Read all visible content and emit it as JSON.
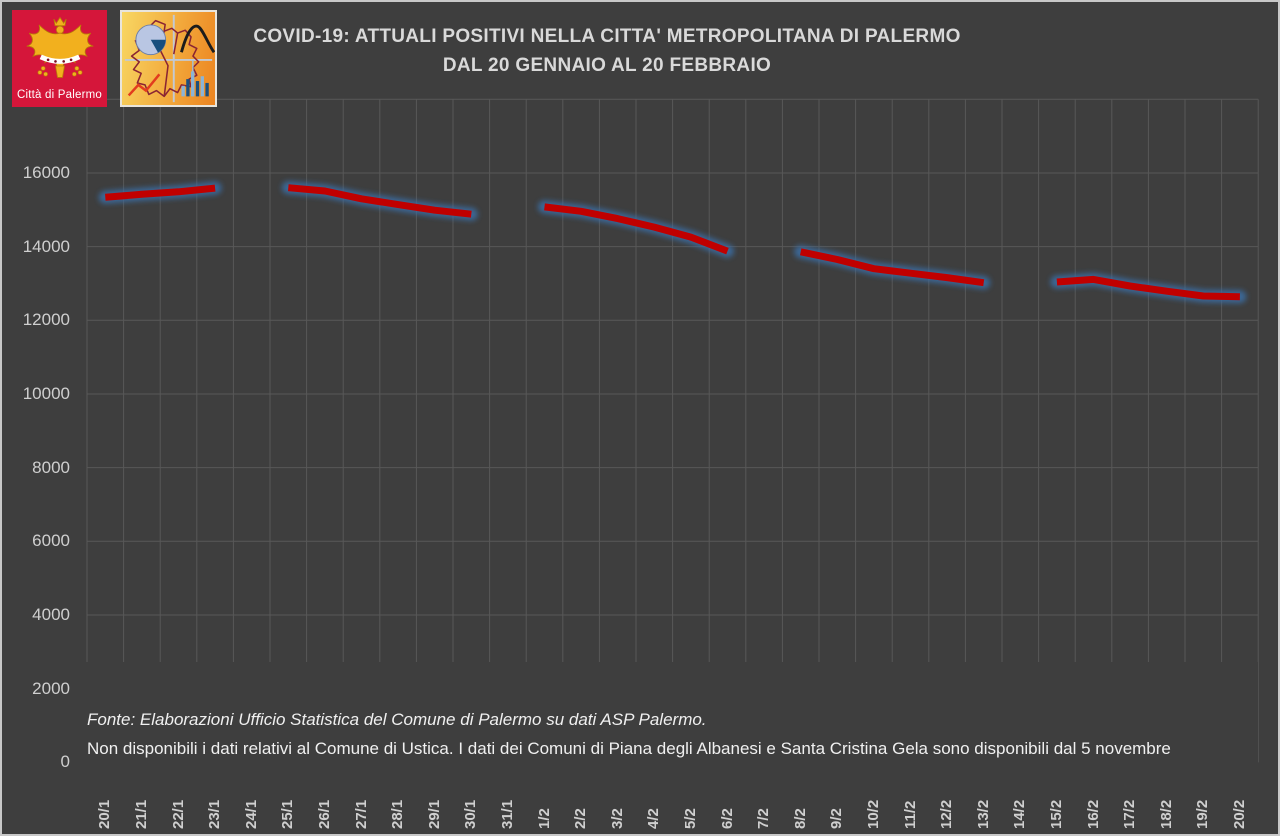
{
  "window": {
    "background": "#3e3e3e",
    "frame_border_color": "#c8c8c8"
  },
  "header": {
    "title_line1": "COVID-19: ATTUALI POSITIVI NELLA CITTA' METROPOLITANA DI PALERMO",
    "title_line2": "DAL 20 GENNAIO AL 20 FEBBRAIO",
    "logo_palermo": {
      "label": "Città di Palermo",
      "bg_color": "#d5163a",
      "emblem": "golden-eagle-crest"
    },
    "logo_statistics": {
      "description": "ufficio-statistica-map-logo",
      "bg_colors": [
        "#f8d763",
        "#ec8420"
      ]
    }
  },
  "footer": {
    "line1": "Fonte: Elaborazioni Ufficio Statistica del Comune di Palermo su dati ASP Palermo.",
    "line2": "Non disponibili i dati relativi al Comune di Ustica. I dati dei Comuni di Piana degli Albanesi e Santa Cristina Gela sono disponibili dal 5 novembre"
  },
  "chart_data": {
    "type": "line",
    "title": "COVID-19: ATTUALI POSITIVI NELLA CITTA' METROPOLITANA DI PALERMO DAL 20 GENNAIO AL 20 FEBBRAIO",
    "categories": [
      "20/1",
      "21/1",
      "22/1",
      "23/1",
      "24/1",
      "25/1",
      "26/1",
      "27/1",
      "28/1",
      "29/1",
      "30/1",
      "31/1",
      "1/2",
      "2/2",
      "3/2",
      "4/2",
      "5/2",
      "6/2",
      "7/2",
      "8/2",
      "9/2",
      "10/2",
      "11/2",
      "12/2",
      "13/2",
      "14/2",
      "15/2",
      "16/2",
      "17/2",
      "18/2",
      "19/2",
      "20/2"
    ],
    "values": [
      15340,
      15420,
      15490,
      15590,
      null,
      15600,
      15510,
      15300,
      15140,
      14990,
      14880,
      null,
      15080,
      14960,
      14760,
      14530,
      14260,
      13880,
      null,
      13860,
      13650,
      13400,
      13280,
      13160,
      13020,
      null,
      13040,
      13110,
      12930,
      12790,
      12660,
      12640
    ],
    "missing_dates": [
      "24/1",
      "31/1",
      "7/2",
      "14/2"
    ],
    "xlabel": "",
    "ylabel": "",
    "ylim": [
      0,
      18000
    ],
    "yticks": [
      0,
      2000,
      4000,
      6000,
      8000,
      10000,
      12000,
      14000,
      16000
    ],
    "grid": true,
    "legend": "none",
    "line_color": "#c00000",
    "glow_color": "#3b6ea5",
    "grid_color": "#585858",
    "tick_label_color": "#cfcfcf"
  }
}
